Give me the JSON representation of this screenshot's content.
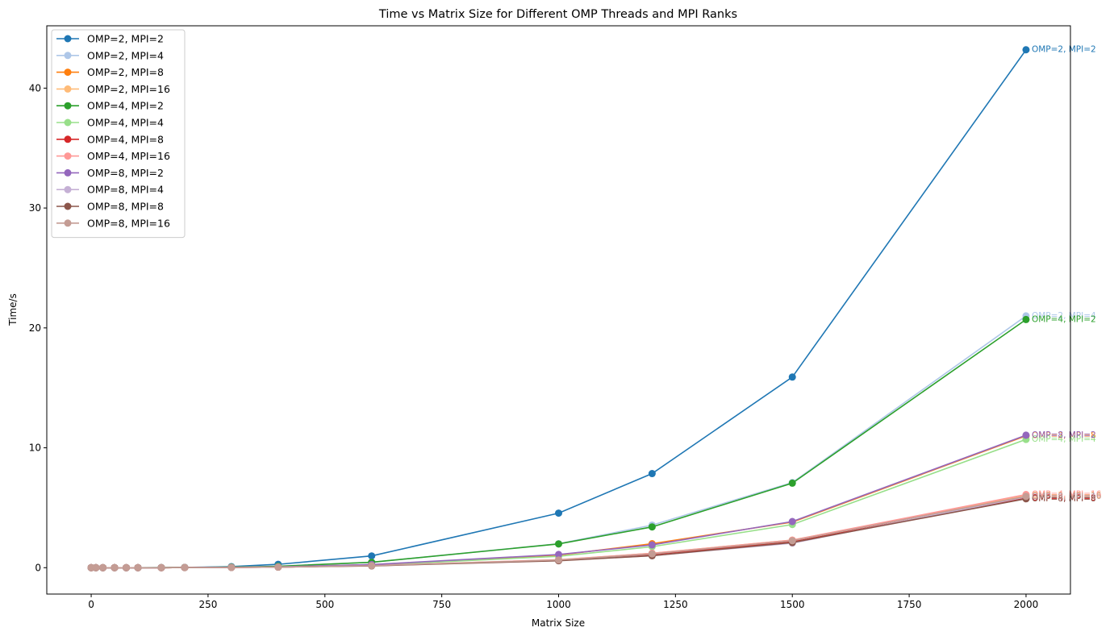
{
  "chart_data": {
    "type": "line",
    "title": "Time vs Matrix Size for Different OMP Threads and MPI Ranks",
    "xlabel": "Matrix Size",
    "ylabel": "Time/s",
    "xlim": [
      -95,
      2095
    ],
    "ylim": [
      -2.2,
      45.2
    ],
    "xticks": [
      0,
      250,
      500,
      750,
      1000,
      1250,
      1500,
      1750,
      2000
    ],
    "yticks": [
      0,
      10,
      20,
      30,
      40
    ],
    "grid": false,
    "legend_position": "top-left",
    "x": [
      0,
      10,
      25,
      50,
      75,
      100,
      150,
      200,
      300,
      400,
      600,
      1000,
      1200,
      1500,
      2000
    ],
    "series": [
      {
        "name": "OMP=2, MPI=2",
        "color": "#1f77b4",
        "end_label": "OMP=2, MPI=2",
        "values": [
          0,
          0,
          0,
          0,
          0,
          0,
          0.01,
          0.02,
          0.09,
          0.28,
          0.98,
          4.55,
          7.85,
          15.9,
          43.2
        ]
      },
      {
        "name": "OMP=2, MPI=4",
        "color": "#aec7e8",
        "end_label": "OMP=2, MPI=4",
        "values": [
          0,
          0,
          0,
          0,
          0,
          0,
          0.01,
          0.02,
          0.05,
          0.12,
          0.45,
          2.0,
          3.55,
          7.1,
          21.0
        ]
      },
      {
        "name": "OMP=2, MPI=8",
        "color": "#ff7f0e",
        "end_label": "OMP=2, MPI=8",
        "values": [
          0,
          0,
          0,
          0,
          0,
          0,
          0,
          0.01,
          0.03,
          0.07,
          0.25,
          1.05,
          2.0,
          3.8,
          11.0
        ]
      },
      {
        "name": "OMP=2, MPI=16",
        "color": "#ffbb78",
        "end_label": "OMP=2, MPI=16",
        "values": [
          0,
          0,
          0,
          0,
          0,
          0,
          0,
          0.01,
          0.02,
          0.05,
          0.18,
          0.65,
          1.2,
          2.3,
          6.0
        ]
      },
      {
        "name": "OMP=4, MPI=2",
        "color": "#2ca02c",
        "end_label": "OMP=4, MPI=2",
        "values": [
          0,
          0,
          0,
          0,
          0,
          0,
          0.01,
          0.02,
          0.05,
          0.12,
          0.45,
          1.98,
          3.4,
          7.05,
          20.7
        ]
      },
      {
        "name": "OMP=4, MPI=4",
        "color": "#98df8a",
        "end_label": "OMP=4, MPI=4",
        "values": [
          0,
          0,
          0,
          0,
          0,
          0,
          0,
          0.01,
          0.03,
          0.07,
          0.22,
          0.95,
          1.75,
          3.6,
          10.7
        ]
      },
      {
        "name": "OMP=4, MPI=8",
        "color": "#d62728",
        "end_label": "OMP=4, MPI=8",
        "values": [
          0,
          0,
          0,
          0,
          0,
          0,
          0,
          0.01,
          0.02,
          0.05,
          0.17,
          0.62,
          1.1,
          2.15,
          5.8
        ]
      },
      {
        "name": "OMP=4, MPI=16",
        "color": "#ff9896",
        "end_label": "OMP=4, MPI=16",
        "values": [
          0,
          0,
          0,
          0,
          0,
          0,
          0,
          0.01,
          0.02,
          0.05,
          0.18,
          0.66,
          1.2,
          2.3,
          6.1
        ]
      },
      {
        "name": "OMP=8, MPI=2",
        "color": "#9467bd",
        "end_label": "OMP=8, MPI=2",
        "values": [
          0,
          0,
          0,
          0,
          0,
          0,
          0,
          0.01,
          0.03,
          0.07,
          0.26,
          1.1,
          1.9,
          3.85,
          11.05
        ]
      },
      {
        "name": "OMP=8, MPI=4",
        "color": "#c5b0d5",
        "end_label": "OMP=8, MPI=4",
        "values": [
          0,
          0,
          0,
          0,
          0,
          0,
          0,
          0.01,
          0.02,
          0.05,
          0.16,
          0.6,
          1.0,
          2.05,
          5.9
        ]
      },
      {
        "name": "OMP=8, MPI=8",
        "color": "#8c564b",
        "end_label": "OMP=8, MPI=8",
        "values": [
          0,
          0,
          0,
          0,
          0,
          0,
          0,
          0.01,
          0.02,
          0.05,
          0.15,
          0.58,
          1.0,
          2.1,
          5.75
        ]
      },
      {
        "name": "OMP=8, MPI=16",
        "color": "#c49c94",
        "end_label": "OMP=8, MPI=16",
        "values": [
          0,
          0,
          0,
          0,
          0,
          0,
          0,
          0.01,
          0.02,
          0.05,
          0.17,
          0.64,
          1.15,
          2.25,
          5.95
        ]
      }
    ]
  }
}
